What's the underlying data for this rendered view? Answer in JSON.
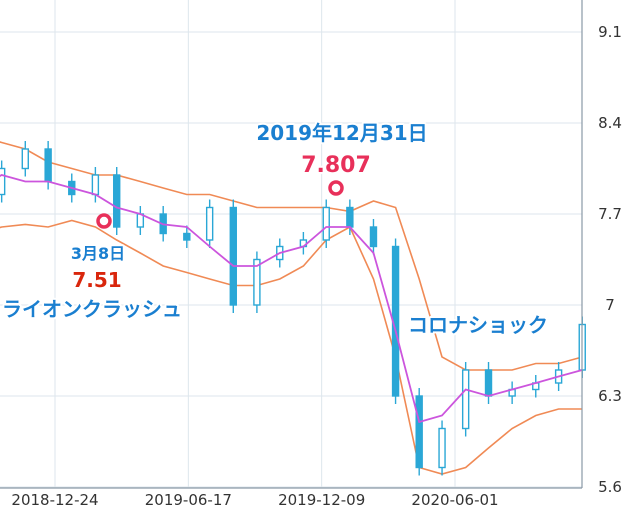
{
  "chart_data": {
    "type": "line",
    "title": "",
    "xlabel": "",
    "ylabel": "",
    "ylim": [
      5.6,
      9.1
    ],
    "yticks": [
      "9.1",
      "8.4",
      "7.7",
      "7",
      "6.3",
      "5.6"
    ],
    "xticks": [
      "2018-12-24",
      "2019-06-17",
      "2019-12-09",
      "2020-06-01"
    ],
    "grid": true,
    "colors": {
      "candle": "#2aa7d6",
      "ma": "#cc55dd",
      "band": "#f08a55",
      "annotation_blue": "#1a7fd0",
      "annotation_red_outline": "#e8305a",
      "annotation_red_value": "#d9260c"
    },
    "series": [
      {
        "name": "",
        "role": "close",
        "x": [
          "2018-09",
          "2018-10",
          "2018-11",
          "2018-12",
          "2019-01",
          "2019-02",
          "2019-03",
          "2019-04",
          "2019-05",
          "2019-06",
          "2019-07",
          "2019-08",
          "2019-09",
          "2019-10",
          "2019-11",
          "2019-12",
          "2020-01",
          "2020-02",
          "2020-03",
          "2020-04",
          "2020-05",
          "2020-06",
          "2020-07",
          "2020-08",
          "2020-09",
          "2020-10",
          "2020-11"
        ],
        "values": [
          7.85,
          8.05,
          8.2,
          7.95,
          7.85,
          8.0,
          7.6,
          7.7,
          7.55,
          7.5,
          7.75,
          7.0,
          7.35,
          7.45,
          7.5,
          7.75,
          7.6,
          7.45,
          6.3,
          5.75,
          6.05,
          6.5,
          6.3,
          6.35,
          6.4,
          6.5,
          6.85
        ]
      },
      {
        "name": "",
        "role": "moving-average",
        "x": [
          "2018-09",
          "2018-10",
          "2018-11",
          "2018-12",
          "2019-01",
          "2019-02",
          "2019-03",
          "2019-04",
          "2019-05",
          "2019-06",
          "2019-07",
          "2019-08",
          "2019-09",
          "2019-10",
          "2019-11",
          "2019-12",
          "2020-01",
          "2020-02",
          "2020-03",
          "2020-04",
          "2020-05",
          "2020-06",
          "2020-07",
          "2020-08",
          "2020-09",
          "2020-10",
          "2020-11"
        ],
        "values": [
          7.9,
          8.0,
          7.95,
          7.95,
          7.9,
          7.85,
          7.75,
          7.7,
          7.62,
          7.6,
          7.45,
          7.3,
          7.3,
          7.4,
          7.45,
          7.6,
          7.6,
          7.4,
          6.8,
          6.1,
          6.15,
          6.35,
          6.3,
          6.35,
          6.4,
          6.45,
          6.5
        ]
      },
      {
        "name": "",
        "role": "upper-band",
        "x": [
          "2018-09",
          "2018-10",
          "2018-11",
          "2018-12",
          "2019-01",
          "2019-02",
          "2019-03",
          "2019-04",
          "2019-05",
          "2019-06",
          "2019-07",
          "2019-08",
          "2019-09",
          "2019-10",
          "2019-11",
          "2019-12",
          "2020-01",
          "2020-02",
          "2020-03",
          "2020-04",
          "2020-05",
          "2020-06",
          "2020-07",
          "2020-08",
          "2020-09",
          "2020-10",
          "2020-11"
        ],
        "values": [
          8.3,
          8.25,
          8.2,
          8.1,
          8.05,
          8.0,
          8.0,
          7.95,
          7.9,
          7.85,
          7.85,
          7.8,
          7.75,
          7.75,
          7.75,
          7.75,
          7.72,
          7.8,
          7.75,
          7.2,
          6.6,
          6.5,
          6.5,
          6.5,
          6.55,
          6.55,
          6.6
        ]
      },
      {
        "name": "",
        "role": "lower-band",
        "x": [
          "2018-09",
          "2018-10",
          "2018-11",
          "2018-12",
          "2019-01",
          "2019-02",
          "2019-03",
          "2019-04",
          "2019-05",
          "2019-06",
          "2019-07",
          "2019-08",
          "2019-09",
          "2019-10",
          "2019-11",
          "2019-12",
          "2020-01",
          "2020-02",
          "2020-03",
          "2020-04",
          "2020-05",
          "2020-06",
          "2020-07",
          "2020-08",
          "2020-09",
          "2020-10",
          "2020-11"
        ],
        "values": [
          7.55,
          7.6,
          7.62,
          7.6,
          7.65,
          7.6,
          7.5,
          7.4,
          7.3,
          7.25,
          7.2,
          7.15,
          7.15,
          7.2,
          7.3,
          7.5,
          7.6,
          7.2,
          6.6,
          5.75,
          5.7,
          5.75,
          5.9,
          6.05,
          6.15,
          6.2,
          6.2
        ]
      }
    ],
    "annotations": [
      {
        "id": "march-low",
        "date_label": "3月8日",
        "value_label": "7.51",
        "event_label": "ライオンクラッシュ",
        "x": "2019-03-08",
        "y": 7.6
      },
      {
        "id": "dec-high",
        "date_label": "2019年12月31日",
        "value_label": "7.807",
        "x": "2019-12-31",
        "y": 7.9
      },
      {
        "id": "corona",
        "event_label": "コロナショック",
        "x": "2020-03",
        "y": 6.92
      }
    ]
  }
}
